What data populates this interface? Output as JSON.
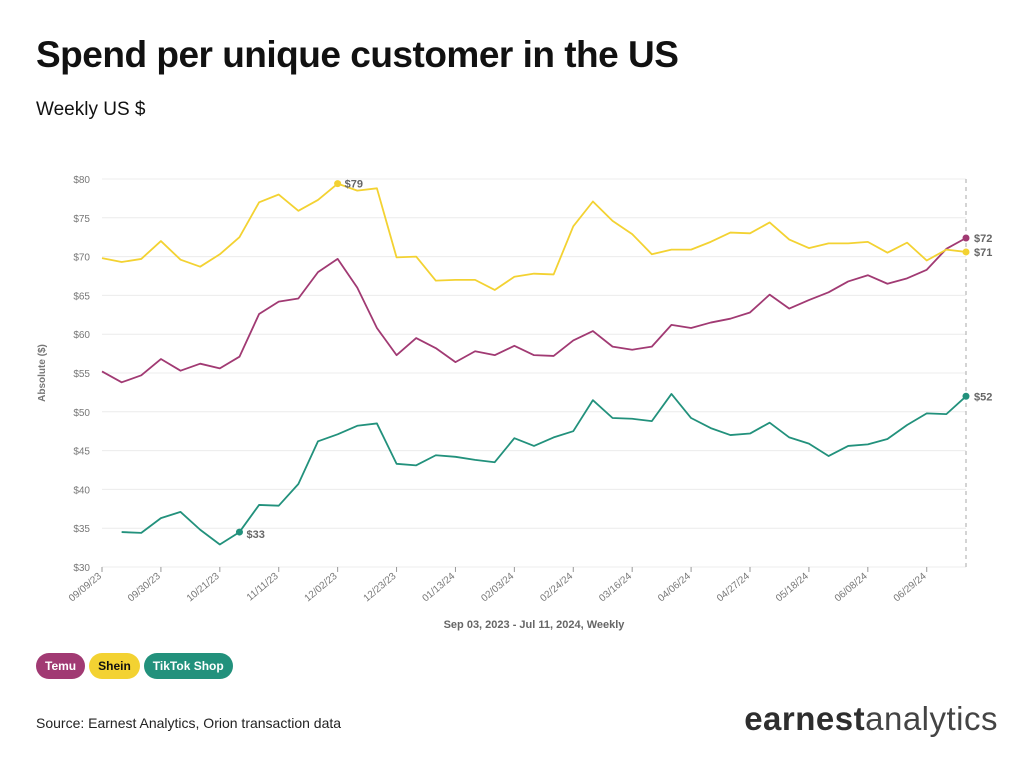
{
  "title": "Spend per unique customer in the US",
  "subtitle": "Weekly US $",
  "source": "Source: Earnest Analytics, Orion transaction data",
  "brand": {
    "part1": "earnest",
    "part2": "analytics"
  },
  "colors": {
    "temu": "#a13a73",
    "shein": "#f3d232",
    "tiktok": "#22917c"
  },
  "legend": [
    {
      "label": "Temu",
      "color": "#a13a73",
      "text_color": "#ffffff"
    },
    {
      "label": "Shein",
      "color": "#f3d232",
      "text_color": "#111111"
    },
    {
      "label": "TikTok Shop",
      "color": "#22917c",
      "text_color": "#ffffff"
    }
  ],
  "chart_data": {
    "type": "line",
    "title": "Spend per unique customer in the US",
    "subtitle": "Weekly US $",
    "xlabel": "Sep 03, 2023 - Jul 11, 2024, Weekly",
    "ylabel": "Absolute ($)",
    "ylim": [
      30,
      80
    ],
    "yticks": [
      30,
      35,
      40,
      45,
      50,
      55,
      60,
      65,
      70,
      75,
      80
    ],
    "ytick_labels": [
      "$30",
      "$35",
      "$40",
      "$45",
      "$50",
      "$55",
      "$60",
      "$65",
      "$70",
      "$75",
      "$80"
    ],
    "x_tick_labels": [
      {
        "index": 0,
        "label": "09/09/23"
      },
      {
        "index": 3,
        "label": "09/30/23"
      },
      {
        "index": 6,
        "label": "10/21/23"
      },
      {
        "index": 9,
        "label": "11/11/23"
      },
      {
        "index": 12,
        "label": "12/02/23"
      },
      {
        "index": 15,
        "label": "12/23/23"
      },
      {
        "index": 18,
        "label": "01/13/24"
      },
      {
        "index": 21,
        "label": "02/03/24"
      },
      {
        "index": 24,
        "label": "02/24/24"
      },
      {
        "index": 27,
        "label": "03/16/24"
      },
      {
        "index": 30,
        "label": "04/06/24"
      },
      {
        "index": 33,
        "label": "04/27/24"
      },
      {
        "index": 36,
        "label": "05/18/24"
      },
      {
        "index": 39,
        "label": "06/08/24"
      },
      {
        "index": 42,
        "label": "06/29/24"
      }
    ],
    "x_count": 45,
    "grid": true,
    "legend_position": "bottom-left",
    "series": [
      {
        "name": "Temu",
        "color": "#a13a73",
        "start_index": 0,
        "values": [
          55.2,
          53.8,
          54.7,
          56.8,
          55.3,
          56.2,
          55.6,
          57.1,
          62.6,
          64.2,
          64.6,
          68.0,
          69.7,
          66.0,
          60.8,
          57.3,
          59.5,
          58.2,
          56.4,
          57.8,
          57.3,
          58.5,
          57.3,
          57.2,
          59.2,
          60.4,
          58.4,
          58.0,
          58.4,
          61.2,
          60.8,
          61.5,
          62.0,
          62.8,
          65.1,
          63.3,
          64.4,
          65.4,
          66.8,
          67.6,
          66.5,
          67.2,
          68.3,
          71.0,
          72.4
        ],
        "end_label": "$72"
      },
      {
        "name": "Shein",
        "color": "#f3d232",
        "start_index": 0,
        "values": [
          69.8,
          69.3,
          69.7,
          72.0,
          69.6,
          68.7,
          70.3,
          72.5,
          77.0,
          78.0,
          75.9,
          77.3,
          79.4,
          78.5,
          78.8,
          69.9,
          70.0,
          66.9,
          67.0,
          67.0,
          65.7,
          67.4,
          67.8,
          67.7,
          73.9,
          77.1,
          74.6,
          72.9,
          70.3,
          70.9,
          70.9,
          71.9,
          73.1,
          73.0,
          74.4,
          72.2,
          71.1,
          71.7,
          71.7,
          71.9,
          70.5,
          71.8,
          69.5,
          70.9,
          70.6
        ],
        "end_label": "$71",
        "peak_index": 12,
        "peak_label": "$79"
      },
      {
        "name": "TikTok Shop",
        "color": "#22917c",
        "start_index": 1,
        "values": [
          34.5,
          34.4,
          36.3,
          37.1,
          34.8,
          32.9,
          34.5,
          38.0,
          37.9,
          40.7,
          46.2,
          47.1,
          48.2,
          48.5,
          43.3,
          43.1,
          44.4,
          44.2,
          43.8,
          43.5,
          46.6,
          45.6,
          46.7,
          47.5,
          51.5,
          49.2,
          49.1,
          48.8,
          52.3,
          49.2,
          47.9,
          47.0,
          47.2,
          48.6,
          46.7,
          45.9,
          44.3,
          45.6,
          45.8,
          46.5,
          48.3,
          49.8,
          49.7,
          52.0
        ],
        "end_label": "$52",
        "min_index": 6,
        "min_label": "$33"
      }
    ]
  }
}
